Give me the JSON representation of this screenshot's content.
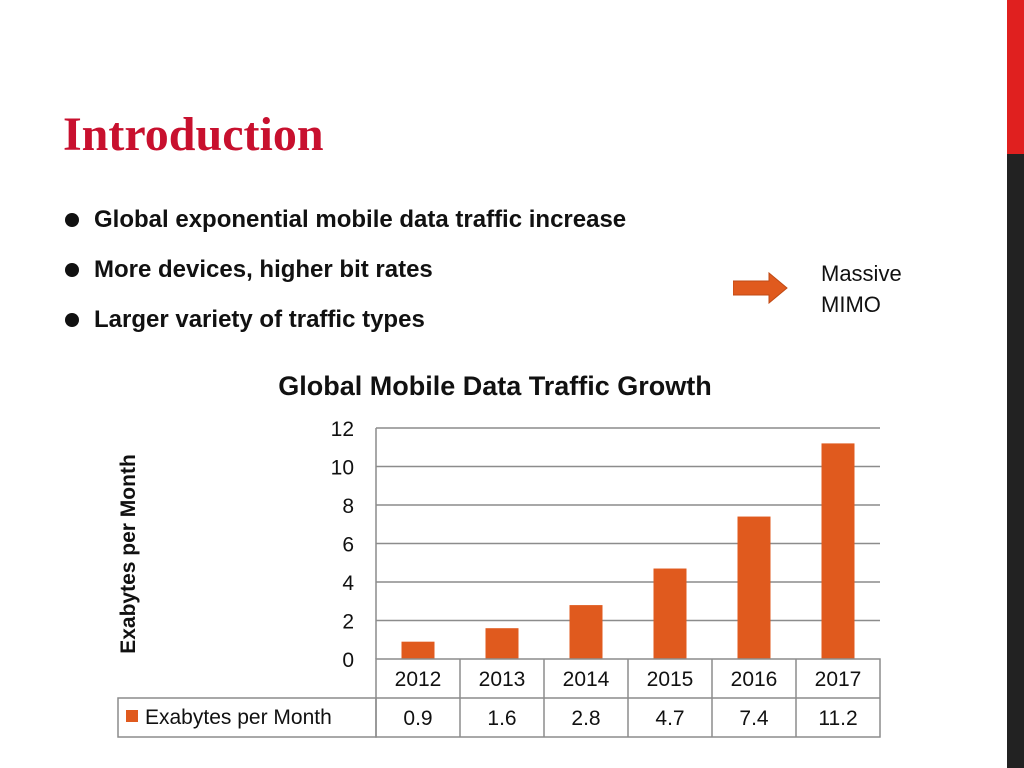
{
  "slide": {
    "title": "Introduction",
    "bullets": [
      "Global exponential mobile data traffic increase",
      "More devices, higher bit rates",
      "Larger variety of traffic types"
    ],
    "side_note": [
      "Massive",
      "MIMO"
    ],
    "accent_color": "#e0201f",
    "title_color": "#c8102e",
    "edge_dark_color": "#222222",
    "arrow_color": "#e05a1e"
  },
  "chart_data": {
    "type": "bar",
    "title": "Global Mobile Data Traffic Growth",
    "ylabel": "Exabytes per Month",
    "xlabel": "",
    "categories": [
      "2012",
      "2013",
      "2014",
      "2015",
      "2016",
      "2017"
    ],
    "series": [
      {
        "name": "Exabytes per Month",
        "values": [
          0.9,
          1.6,
          2.8,
          4.7,
          7.4,
          11.2
        ],
        "color": "#e05a1e"
      }
    ],
    "value_labels": [
      "0.9",
      "1.6",
      "2.8",
      "4.7",
      "7.4",
      "11.2"
    ],
    "ylim": [
      0,
      12
    ],
    "yticks": [
      "0",
      "2",
      "4",
      "6",
      "8",
      "10",
      "12"
    ],
    "grid": true,
    "legend": "data-table"
  }
}
